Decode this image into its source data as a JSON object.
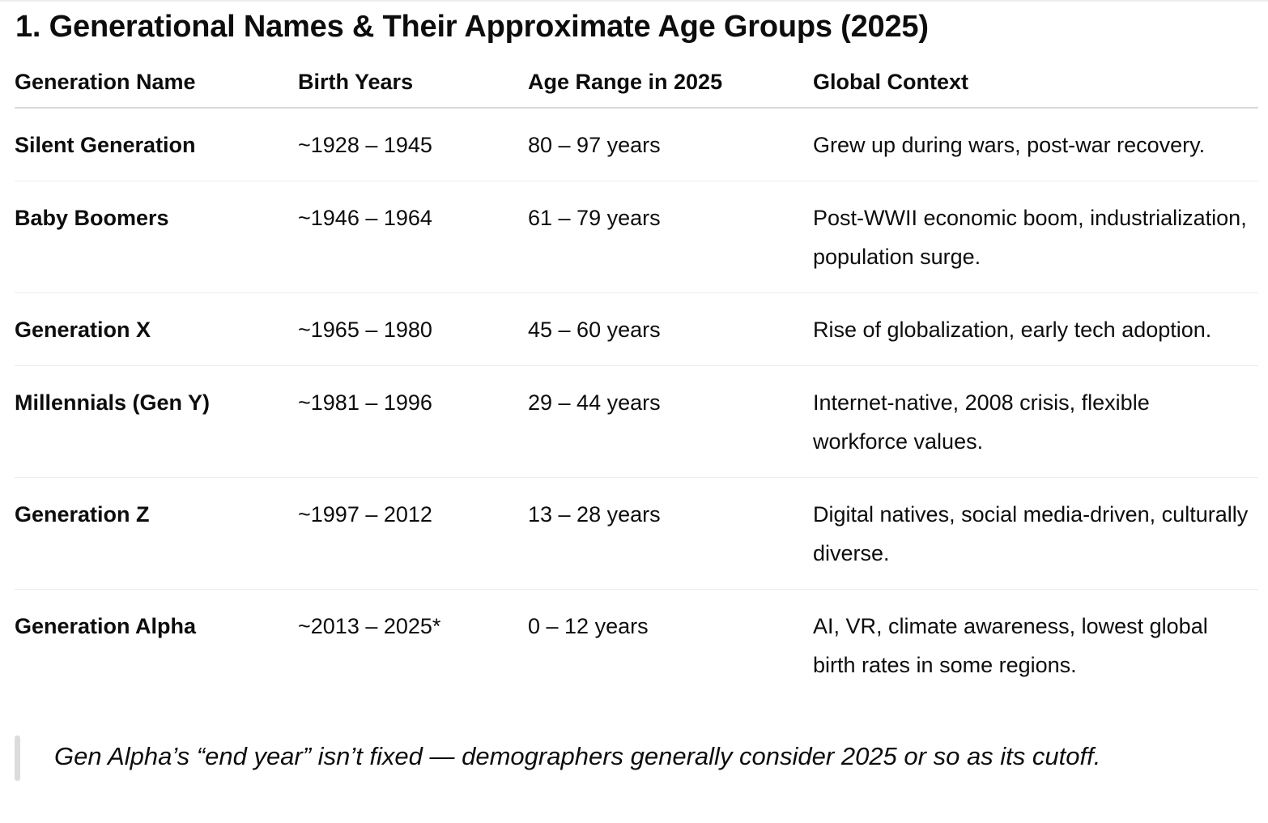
{
  "heading": "1. Generational Names & Their Approximate Age Groups (2025)",
  "table": {
    "headers": [
      "Generation Name",
      "Birth Years",
      "Age Range in 2025",
      "Global Context"
    ],
    "rows": [
      {
        "name": "Silent Generation",
        "birth_years": "~1928 – 1945",
        "age_range": "80 – 97 years",
        "context": "Grew up during wars, post-war recovery."
      },
      {
        "name": "Baby Boomers",
        "birth_years": "~1946 – 1964",
        "age_range": "61 – 79 years",
        "context": "Post-WWII economic boom, industrialization, population surge."
      },
      {
        "name": "Generation X",
        "birth_years": "~1965 – 1980",
        "age_range": "45 – 60 years",
        "context": "Rise of globalization, early tech adoption."
      },
      {
        "name": "Millennials (Gen Y)",
        "birth_years": "~1981 – 1996",
        "age_range": "29 – 44 years",
        "context": "Internet-native, 2008 crisis, flexible workforce values."
      },
      {
        "name": "Generation Z",
        "birth_years": "~1997 – 2012",
        "age_range": "13 – 28 years",
        "context": "Digital natives, social media-driven, culturally diverse."
      },
      {
        "name": "Generation Alpha",
        "birth_years": "~2013 – 2025*",
        "age_range": "0 – 12 years",
        "context": "AI, VR, climate awareness, lowest global birth rates in some regions."
      }
    ]
  },
  "note": "Gen Alpha’s “end year” isn’t fixed — demographers generally consider 2025 or so as its cutoff."
}
